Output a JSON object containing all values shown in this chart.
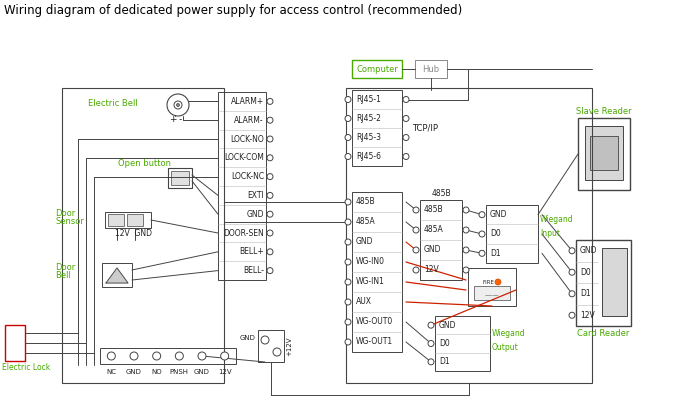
{
  "title": "Wiring diagram of dedicated power supply for access control (recommended)",
  "title_color": "#000000",
  "title_fontsize": 8.5,
  "bg_color": "#ffffff",
  "green_color": "#4aaa00",
  "dark_color": "#222222",
  "gray_color": "#888888",
  "red_color": "#cc2200",
  "line_color": "#444444",
  "terminal_labels_left": [
    "ALARM+",
    "ALARM-",
    "LOCK-NO",
    "LOCK-COM",
    "LOCK-NC",
    "EXTI",
    "GND",
    "DOOR-SEN",
    "BELL+",
    "BELL-"
  ],
  "terminal_labels_right": [
    "485B",
    "485A",
    "GND",
    "WG-IN0",
    "WG-IN1",
    "AUX",
    "WG-OUT0",
    "WG-OUT1"
  ],
  "rj45_labels": [
    "RJ45-1",
    "RJ45-2",
    "RJ45-3",
    "RJ45-6"
  ],
  "mid_terminal_labels": [
    "485B",
    "485A",
    "GND",
    "12V"
  ],
  "wiegand_in_labels": [
    "GND",
    "D0",
    "D1"
  ],
  "wiegand_out_labels": [
    "GND",
    "D0",
    "D1"
  ],
  "card_reader_labels": [
    "GND",
    "D0",
    "D1",
    "12V"
  ],
  "bottom_labels": [
    "NC",
    "GND",
    "NO",
    "PNSH",
    "GND",
    "12V"
  ]
}
